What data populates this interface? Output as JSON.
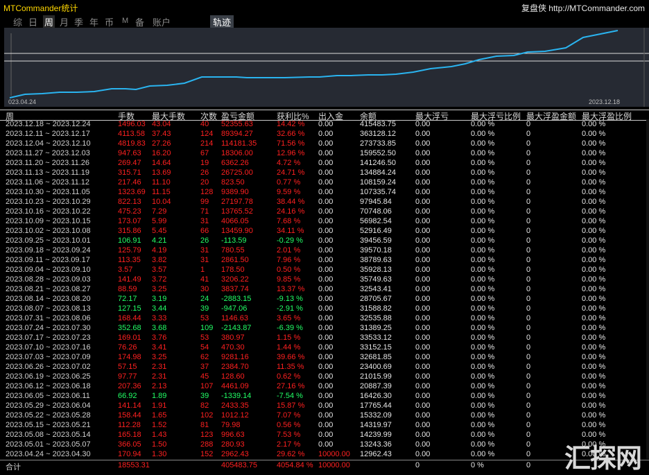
{
  "window": {
    "title": "MTCommander统计",
    "brand": "复盘侠 http://MTCommander.com"
  },
  "tabs": [
    {
      "label": "综",
      "active": false
    },
    {
      "label": "日",
      "active": false
    },
    {
      "label": "周",
      "active": true
    },
    {
      "label": "月",
      "active": false
    },
    {
      "label": "季",
      "active": false
    },
    {
      "label": "年",
      "active": false
    },
    {
      "label": "币",
      "active": false
    },
    {
      "label": "M",
      "active": false
    },
    {
      "label": "备",
      "active": false
    },
    {
      "label": "账户",
      "active": false
    },
    {
      "label": "轨迹",
      "active": false
    }
  ],
  "chart": {
    "x_start_label": "023.04.24",
    "x_end_label": "2023.12.18",
    "line_color": "#2ab4f0",
    "bg_color": "#262a33"
  },
  "columns": [
    "周",
    "手数",
    "最大手数",
    "次数",
    "盈亏金额",
    "获利比%",
    "出入金",
    "余额",
    "最大浮亏",
    "最大浮亏比例",
    "最大浮盈金额",
    "最大浮盈比例"
  ],
  "rows": [
    [
      "2023.12.18 ~ 2023.12.24",
      "1496.03",
      "43.04",
      "40",
      "52355.63",
      "14.42 %",
      "0.00",
      "415483.75",
      "0.00",
      "0.00 %",
      "0",
      "0.00 %"
    ],
    [
      "2023.12.11 ~ 2023.12.17",
      "4113.58",
      "37.43",
      "124",
      "89394.27",
      "32.66 %",
      "0.00",
      "363128.12",
      "0.00",
      "0.00 %",
      "0",
      "0.00 %"
    ],
    [
      "2023.12.04 ~ 2023.12.10",
      "4819.83",
      "27.26",
      "214",
      "114181.35",
      "71.56 %",
      "0.00",
      "273733.85",
      "0.00",
      "0.00 %",
      "0",
      "0.00 %"
    ],
    [
      "2023.11.27 ~ 2023.12.03",
      "947.63",
      "16.20",
      "67",
      "18306.00",
      "12.96 %",
      "0.00",
      "159552.50",
      "0.00",
      "0.00 %",
      "0",
      "0.00 %"
    ],
    [
      "2023.11.20 ~ 2023.11.26",
      "269.47",
      "14.64",
      "19",
      "6362.26",
      "4.72 %",
      "0.00",
      "141246.50",
      "0.00",
      "0.00 %",
      "0",
      "0.00 %"
    ],
    [
      "2023.11.13 ~ 2023.11.19",
      "315.71",
      "13.69",
      "26",
      "26725.00",
      "24.71 %",
      "0.00",
      "134884.24",
      "0.00",
      "0.00 %",
      "0",
      "0.00 %"
    ],
    [
      "2023.11.06 ~ 2023.11.12",
      "217.46",
      "11.10",
      "20",
      "823.50",
      "0.77 %",
      "0.00",
      "108159.24",
      "0.00",
      "0.00 %",
      "0",
      "0.00 %"
    ],
    [
      "2023.10.30 ~ 2023.11.05",
      "1323.69",
      "11.15",
      "128",
      "9389.90",
      "9.59 %",
      "0.00",
      "107335.74",
      "0.00",
      "0.00 %",
      "0",
      "0.00 %"
    ],
    [
      "2023.10.23 ~ 2023.10.29",
      "822.13",
      "10.04",
      "99",
      "27197.78",
      "38.44 %",
      "0.00",
      "97945.84",
      "0.00",
      "0.00 %",
      "0",
      "0.00 %"
    ],
    [
      "2023.10.16 ~ 2023.10.22",
      "475.23",
      "7.29",
      "71",
      "13765.52",
      "24.16 %",
      "0.00",
      "70748.06",
      "0.00",
      "0.00 %",
      "0",
      "0.00 %"
    ],
    [
      "2023.10.09 ~ 2023.10.15",
      "173.07",
      "5.99",
      "31",
      "4066.05",
      "7.68 %",
      "0.00",
      "56982.54",
      "0.00",
      "0.00 %",
      "0",
      "0.00 %"
    ],
    [
      "2023.10.02 ~ 2023.10.08",
      "315.86",
      "5.45",
      "66",
      "13459.90",
      "34.11 %",
      "0.00",
      "52916.49",
      "0.00",
      "0.00 %",
      "0",
      "0.00 %"
    ],
    [
      "2023.09.25 ~ 2023.10.01",
      "106.91",
      "4.21",
      "26",
      "-113.59",
      "-0.29 %",
      "0.00",
      "39456.59",
      "0.00",
      "0.00 %",
      "0",
      "0.00 %"
    ],
    [
      "2023.09.18 ~ 2023.09.24",
      "125.79",
      "4.19",
      "31",
      "780.55",
      "2.01 %",
      "0.00",
      "39570.18",
      "0.00",
      "0.00 %",
      "0",
      "0.00 %"
    ],
    [
      "2023.09.11 ~ 2023.09.17",
      "113.35",
      "3.82",
      "31",
      "2861.50",
      "7.96 %",
      "0.00",
      "38789.63",
      "0.00",
      "0.00 %",
      "0",
      "0.00 %"
    ],
    [
      "2023.09.04 ~ 2023.09.10",
      "3.57",
      "3.57",
      "1",
      "178.50",
      "0.50 %",
      "0.00",
      "35928.13",
      "0.00",
      "0.00 %",
      "0",
      "0.00 %"
    ],
    [
      "2023.08.28 ~ 2023.09.03",
      "141.49",
      "3.72",
      "41",
      "3206.22",
      "9.85 %",
      "0.00",
      "35749.63",
      "0.00",
      "0.00 %",
      "0",
      "0.00 %"
    ],
    [
      "2023.08.21 ~ 2023.08.27",
      "88.59",
      "3.25",
      "30",
      "3837.74",
      "13.37 %",
      "0.00",
      "32543.41",
      "0.00",
      "0.00 %",
      "0",
      "0.00 %"
    ],
    [
      "2023.08.14 ~ 2023.08.20",
      "72.17",
      "3.19",
      "24",
      "-2883.15",
      "-9.13 %",
      "0.00",
      "28705.67",
      "0.00",
      "0.00 %",
      "0",
      "0.00 %"
    ],
    [
      "2023.08.07 ~ 2023.08.13",
      "127.15",
      "3.44",
      "39",
      "-947.06",
      "-2.91 %",
      "0.00",
      "31588.82",
      "0.00",
      "0.00 %",
      "0",
      "0.00 %"
    ],
    [
      "2023.07.31 ~ 2023.08.06",
      "168.44",
      "3.33",
      "53",
      "1146.63",
      "3.65 %",
      "0.00",
      "32535.88",
      "0.00",
      "0.00 %",
      "0",
      "0.00 %"
    ],
    [
      "2023.07.24 ~ 2023.07.30",
      "352.68",
      "3.68",
      "109",
      "-2143.87",
      "-6.39 %",
      "0.00",
      "31389.25",
      "0.00",
      "0.00 %",
      "0",
      "0.00 %"
    ],
    [
      "2023.07.17 ~ 2023.07.23",
      "169.01",
      "3.76",
      "53",
      "380.97",
      "1.15 %",
      "0.00",
      "33533.12",
      "0.00",
      "0.00 %",
      "0",
      "0.00 %"
    ],
    [
      "2023.07.10 ~ 2023.07.16",
      "76.26",
      "3.41",
      "54",
      "470.30",
      "1.44 %",
      "0.00",
      "33152.15",
      "0.00",
      "0.00 %",
      "0",
      "0.00 %"
    ],
    [
      "2023.07.03 ~ 2023.07.09",
      "174.98",
      "3.25",
      "62",
      "9281.16",
      "39.66 %",
      "0.00",
      "32681.85",
      "0.00",
      "0.00 %",
      "0",
      "0.00 %"
    ],
    [
      "2023.06.26 ~ 2023.07.02",
      "57.15",
      "2.31",
      "37",
      "2384.70",
      "11.35 %",
      "0.00",
      "23400.69",
      "0.00",
      "0.00 %",
      "0",
      "0.00 %"
    ],
    [
      "2023.06.19 ~ 2023.06.25",
      "97.77",
      "2.31",
      "45",
      "128.60",
      "0.62 %",
      "0.00",
      "21015.99",
      "0.00",
      "0.00 %",
      "0",
      "0.00 %"
    ],
    [
      "2023.06.12 ~ 2023.06.18",
      "207.36",
      "2.13",
      "107",
      "4461.09",
      "27.16 %",
      "0.00",
      "20887.39",
      "0.00",
      "0.00 %",
      "0",
      "0.00 %"
    ],
    [
      "2023.06.05 ~ 2023.06.11",
      "66.92",
      "1.89",
      "39",
      "-1339.14",
      "-7.54 %",
      "0.00",
      "16426.30",
      "0.00",
      "0.00 %",
      "0",
      "0.00 %"
    ],
    [
      "2023.05.29 ~ 2023.06.04",
      "141.14",
      "1.91",
      "82",
      "2433.35",
      "15.87 %",
      "0.00",
      "17765.44",
      "0.00",
      "0.00 %",
      "0",
      "0.00 %"
    ],
    [
      "2023.05.22 ~ 2023.05.28",
      "158.44",
      "1.65",
      "102",
      "1012.12",
      "7.07 %",
      "0.00",
      "15332.09",
      "0.00",
      "0.00 %",
      "0",
      "0.00 %"
    ],
    [
      "2023.05.15 ~ 2023.05.21",
      "112.28",
      "1.52",
      "81",
      "79.98",
      "0.56 %",
      "0.00",
      "14319.97",
      "0.00",
      "0.00 %",
      "0",
      "0.00 %"
    ],
    [
      "2023.05.08 ~ 2023.05.14",
      "165.18",
      "1.43",
      "123",
      "996.63",
      "7.53 %",
      "0.00",
      "14239.99",
      "0.00",
      "0.00 %",
      "0",
      "0.00 %"
    ],
    [
      "2023.05.01 ~ 2023.05.07",
      "366.05",
      "1.50",
      "288",
      "280.93",
      "2.17 %",
      "0.00",
      "13243.36",
      "0.00",
      "0.00 %",
      "0",
      "0.00 %"
    ],
    [
      "2023.04.24 ~ 2023.04.30",
      "170.94",
      "1.30",
      "152",
      "2962.43",
      "29.62 %",
      "10000.00",
      "12962.43",
      "0.00",
      "0.00 %",
      "0",
      "0.00 %"
    ]
  ],
  "total": {
    "label": "合计",
    "lots": "18553.31",
    "pnl": "405483.75",
    "ratio": "4054.84 %",
    "deposit": "10000.00",
    "float_loss": "0",
    "float_ratio": "0 %",
    "float_gain": "0"
  },
  "watermark": "汇探网",
  "colors": {
    "profit": "#ff2020",
    "loss": "#22ff66",
    "accent": "#ffd700"
  }
}
